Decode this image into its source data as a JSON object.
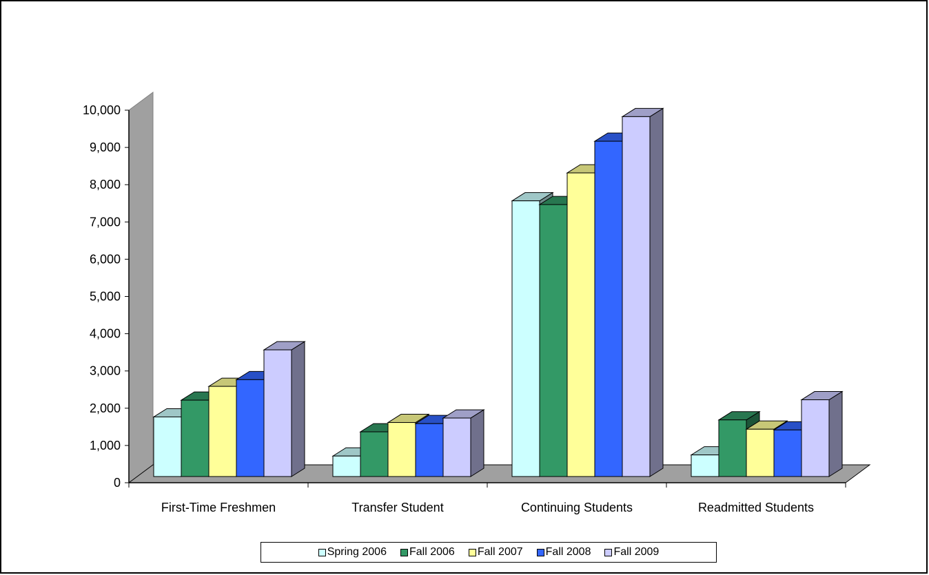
{
  "chart_data": {
    "type": "bar",
    "categories": [
      "First-Time Freshmen",
      "Transfer Student",
      "Continuing Students",
      "Readmitted Students"
    ],
    "series": [
      {
        "name": "Spring 2006",
        "color": "#ccffff",
        "values": [
          1600,
          550,
          7400,
          580
        ]
      },
      {
        "name": "Fall 2006",
        "color": "#339966",
        "values": [
          2050,
          1200,
          7300,
          1520
        ]
      },
      {
        "name": "Fall 2007",
        "color": "#ffff99",
        "values": [
          2420,
          1450,
          8150,
          1270
        ]
      },
      {
        "name": "Fall 2008",
        "color": "#3366ff",
        "values": [
          2600,
          1420,
          9000,
          1250
        ]
      },
      {
        "name": "Fall 2009",
        "color": "#ccccff",
        "values": [
          3400,
          1570,
          9660,
          2060
        ]
      }
    ],
    "yticks": [
      "0",
      "1,000",
      "2,000",
      "3,000",
      "4,000",
      "5,000",
      "6,000",
      "7,000",
      "8,000",
      "9,000",
      "10,000"
    ],
    "ylim": [
      0,
      10000
    ],
    "gridlines": false,
    "three_d": true,
    "legend_position": "bottom"
  }
}
